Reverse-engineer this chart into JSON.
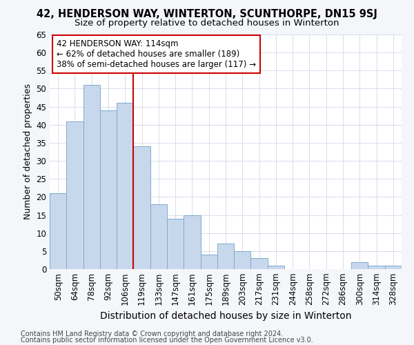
{
  "title": "42, HENDERSON WAY, WINTERTON, SCUNTHORPE, DN15 9SJ",
  "subtitle": "Size of property relative to detached houses in Winterton",
  "xlabel": "Distribution of detached houses by size in Winterton",
  "ylabel": "Number of detached properties",
  "categories": [
    "50sqm",
    "64sqm",
    "78sqm",
    "92sqm",
    "106sqm",
    "119sqm",
    "133sqm",
    "147sqm",
    "161sqm",
    "175sqm",
    "189sqm",
    "203sqm",
    "217sqm",
    "231sqm",
    "244sqm",
    "258sqm",
    "272sqm",
    "286sqm",
    "300sqm",
    "314sqm",
    "328sqm"
  ],
  "values": [
    21,
    41,
    51,
    44,
    46,
    34,
    18,
    14,
    15,
    4,
    7,
    5,
    3,
    1,
    0,
    0,
    0,
    0,
    2,
    1,
    1
  ],
  "bar_color": "#c8d8ec",
  "bar_edge_color": "#7aaad0",
  "bar_edge_width": 0.7,
  "grid_color": "#d0d8e8",
  "background_color": "#ffffff",
  "fig_background_color": "#f4f6fa",
  "red_line_x": 4.5,
  "red_line_color": "#cc0000",
  "annotation_text": "42 HENDERSON WAY: 114sqm\n← 62% of detached houses are smaller (189)\n38% of semi-detached houses are larger (117) →",
  "annotation_box_facecolor": "#ffffff",
  "annotation_box_edgecolor": "#cc0000",
  "footer_line1": "Contains HM Land Registry data © Crown copyright and database right 2024.",
  "footer_line2": "Contains public sector information licensed under the Open Government Licence v3.0.",
  "ylim": [
    0,
    65
  ],
  "yticks": [
    0,
    5,
    10,
    15,
    20,
    25,
    30,
    35,
    40,
    45,
    50,
    55,
    60,
    65
  ],
  "title_fontsize": 10.5,
  "subtitle_fontsize": 9.5,
  "xlabel_fontsize": 10,
  "ylabel_fontsize": 9,
  "tick_fontsize": 8.5,
  "annotation_fontsize": 8.5,
  "footer_fontsize": 7
}
